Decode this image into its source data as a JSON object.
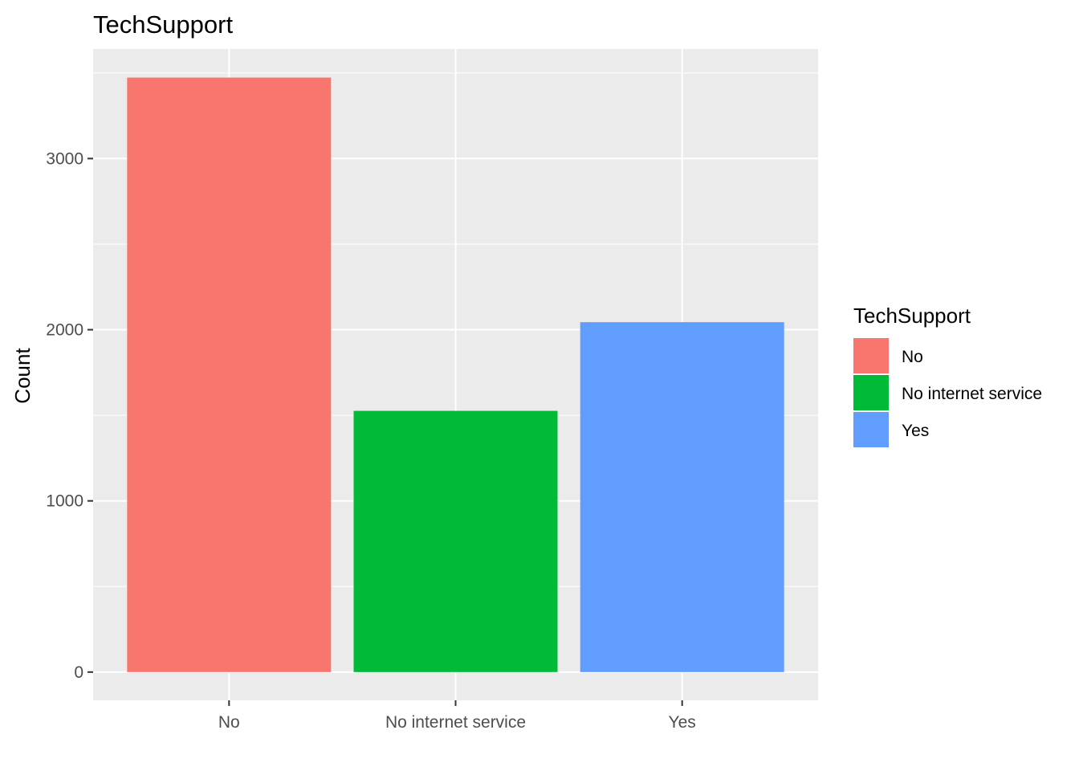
{
  "chart_data": {
    "type": "bar",
    "title": "TechSupport",
    "xlabel": "",
    "ylabel": "Count",
    "categories": [
      "No",
      "No internet service",
      "Yes"
    ],
    "values": [
      3473,
      1526,
      2044
    ],
    "colors": [
      "#F8766D",
      "#00BA38",
      "#619CFF"
    ],
    "ylim": [
      -165,
      3640
    ],
    "yticks": [
      0,
      1000,
      2000,
      3000
    ],
    "ytick_labels": [
      "0",
      "1000",
      "2000",
      "3000"
    ],
    "panel_background": "#EBEBEB",
    "grid": true,
    "legend": {
      "title": "TechSupport",
      "position": "right",
      "entries": [
        "No",
        "No internet service",
        "Yes"
      ]
    }
  }
}
